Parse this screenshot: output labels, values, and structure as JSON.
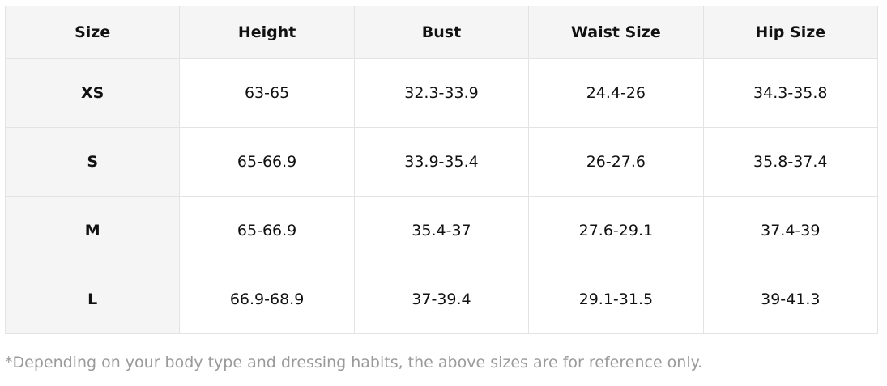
{
  "size_chart": {
    "headers": [
      "Size",
      "Height",
      "Bust",
      "Waist Size",
      "Hip Size"
    ],
    "rows": [
      {
        "size": "XS",
        "height": "63-65",
        "bust": "32.3-33.9",
        "waist": "24.4-26",
        "hip": "34.3-35.8"
      },
      {
        "size": "S",
        "height": "65-66.9",
        "bust": "33.9-35.4",
        "waist": "26-27.6",
        "hip": "35.8-37.4"
      },
      {
        "size": "M",
        "height": "65-66.9",
        "bust": "35.4-37",
        "waist": "27.6-29.1",
        "hip": "37.4-39"
      },
      {
        "size": "L",
        "height": "66.9-68.9",
        "bust": "37-39.4",
        "waist": "29.1-31.5",
        "hip": "39-41.3"
      }
    ]
  },
  "footnote": "*Depending on your body type and dressing habits, the above sizes are for reference only."
}
